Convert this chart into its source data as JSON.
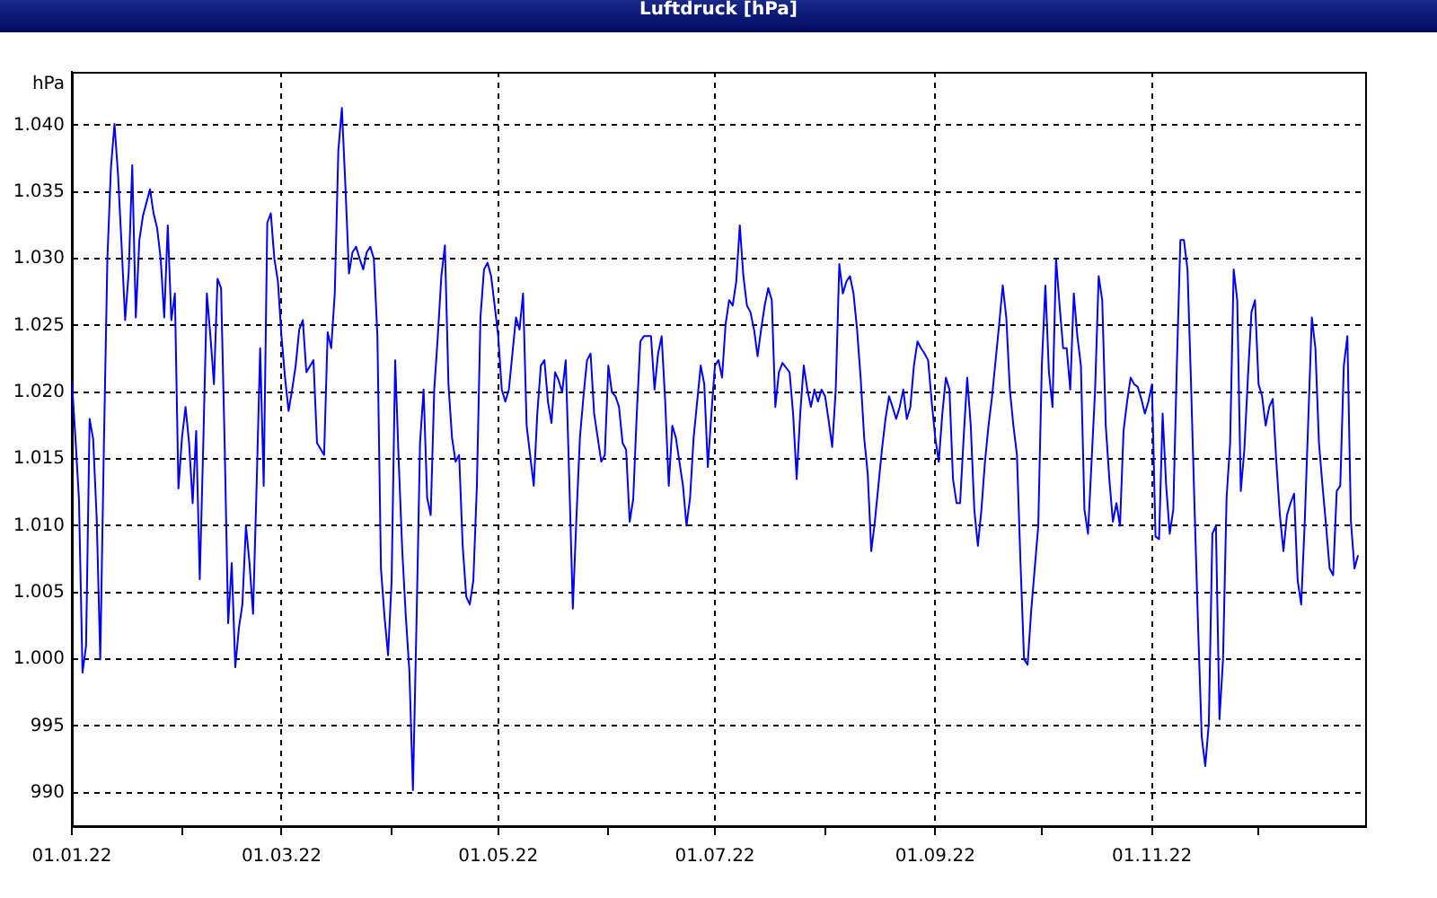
{
  "chart_data": {
    "type": "line",
    "title": "Luftdruck [hPa]",
    "ylabel": "hPa",
    "color": "#0000ff",
    "grid": true,
    "xlim": [
      "2022-01-01",
      "2022-12-31"
    ],
    "xticks": [
      {
        "value": "2022-01-01",
        "label": "01.01.22"
      },
      {
        "value": "2022-02-01",
        "label": null
      },
      {
        "value": "2022-03-01",
        "label": "01.03.22"
      },
      {
        "value": "2022-04-01",
        "label": null
      },
      {
        "value": "2022-05-01",
        "label": "01.05.22"
      },
      {
        "value": "2022-06-01",
        "label": null
      },
      {
        "value": "2022-07-01",
        "label": "01.07.22"
      },
      {
        "value": "2022-08-01",
        "label": null
      },
      {
        "value": "2022-09-01",
        "label": "01.09.22"
      },
      {
        "value": "2022-10-01",
        "label": null
      },
      {
        "value": "2022-11-01",
        "label": "01.11.22"
      },
      {
        "value": "2022-12-01",
        "label": null
      }
    ],
    "ylim": [
      987.5,
      1044
    ],
    "yticks": [
      990,
      995,
      {
        "value": 1000,
        "label": "1.000"
      },
      {
        "value": 1005,
        "label": "1.005"
      },
      {
        "value": 1010,
        "label": "1.010"
      },
      {
        "value": 1015,
        "label": "1.015"
      },
      {
        "value": 1020,
        "label": "1.020"
      },
      {
        "value": 1025,
        "label": "1.025"
      },
      {
        "value": 1030,
        "label": "1.030"
      },
      {
        "value": 1035,
        "label": "1.035"
      },
      {
        "value": 1040,
        "label": "1.040"
      }
    ],
    "x": [
      "2022-01-01",
      "2022-01-02",
      "2022-01-03",
      "2022-01-04",
      "2022-01-05",
      "2022-01-06",
      "2022-01-07",
      "2022-01-08",
      "2022-01-09",
      "2022-01-10",
      "2022-01-11",
      "2022-01-12",
      "2022-01-13",
      "2022-01-14",
      "2022-01-15",
      "2022-01-16",
      "2022-01-17",
      "2022-01-18",
      "2022-01-19",
      "2022-01-20",
      "2022-01-21",
      "2022-01-23",
      "2022-01-24",
      "2022-01-25",
      "2022-01-26",
      "2022-01-27",
      "2022-01-28",
      "2022-01-29",
      "2022-01-30",
      "2022-01-31",
      "2022-02-01",
      "2022-02-02",
      "2022-02-03",
      "2022-02-04",
      "2022-02-05",
      "2022-02-06",
      "2022-02-07",
      "2022-02-08",
      "2022-02-09",
      "2022-02-10",
      "2022-02-11",
      "2022-02-12",
      "2022-02-13",
      "2022-02-14",
      "2022-02-15",
      "2022-02-16",
      "2022-02-17",
      "2022-02-18",
      "2022-02-19",
      "2022-02-20",
      "2022-02-21",
      "2022-02-22",
      "2022-02-23",
      "2022-02-24",
      "2022-02-25",
      "2022-02-26",
      "2022-02-27",
      "2022-02-28",
      "2022-03-01",
      "2022-03-02",
      "2022-03-03",
      "2022-03-04",
      "2022-03-05",
      "2022-03-06",
      "2022-03-07",
      "2022-03-08",
      "2022-03-10",
      "2022-03-11",
      "2022-03-13",
      "2022-03-14",
      "2022-03-15",
      "2022-03-16",
      "2022-03-17",
      "2022-03-18",
      "2022-03-19",
      "2022-03-20",
      "2022-03-21",
      "2022-03-22",
      "2022-03-23",
      "2022-03-24",
      "2022-03-25",
      "2022-03-26",
      "2022-03-27",
      "2022-03-28",
      "2022-03-29",
      "2022-03-30",
      "2022-03-31",
      "2022-04-01",
      "2022-04-02",
      "2022-04-03",
      "2022-04-04",
      "2022-04-05",
      "2022-04-06",
      "2022-04-07",
      "2022-04-08",
      "2022-04-09",
      "2022-04-10",
      "2022-04-11",
      "2022-04-12",
      "2022-04-13",
      "2022-04-14",
      "2022-04-15",
      "2022-04-16",
      "2022-04-17",
      "2022-04-18",
      "2022-04-19",
      "2022-04-20",
      "2022-04-21",
      "2022-04-22",
      "2022-04-23",
      "2022-04-24",
      "2022-04-25",
      "2022-04-26",
      "2022-04-27",
      "2022-04-28",
      "2022-04-29",
      "2022-04-30",
      "2022-05-01",
      "2022-05-02",
      "2022-05-03",
      "2022-05-04",
      "2022-05-05",
      "2022-05-06",
      "2022-05-07",
      "2022-05-08",
      "2022-05-09",
      "2022-05-11",
      "2022-05-12",
      "2022-05-13",
      "2022-05-14",
      "2022-05-15",
      "2022-05-16",
      "2022-05-17",
      "2022-05-18",
      "2022-05-19",
      "2022-05-20",
      "2022-05-21",
      "2022-05-22",
      "2022-05-23",
      "2022-05-24",
      "2022-05-25",
      "2022-05-26",
      "2022-05-27",
      "2022-05-28",
      "2022-05-29",
      "2022-05-30",
      "2022-05-31",
      "2022-06-01",
      "2022-06-02",
      "2022-06-03",
      "2022-06-04",
      "2022-06-05",
      "2022-06-06",
      "2022-06-07",
      "2022-06-08",
      "2022-06-09",
      "2022-06-10",
      "2022-06-11",
      "2022-06-12",
      "2022-06-13",
      "2022-06-14",
      "2022-06-15",
      "2022-06-16",
      "2022-06-17",
      "2022-06-18",
      "2022-06-19",
      "2022-06-20",
      "2022-06-21",
      "2022-06-22",
      "2022-06-23",
      "2022-06-24",
      "2022-06-25",
      "2022-06-26",
      "2022-06-27",
      "2022-06-28",
      "2022-06-29",
      "2022-06-30",
      "2022-07-01",
      "2022-07-02",
      "2022-07-03",
      "2022-07-04",
      "2022-07-05",
      "2022-07-06",
      "2022-07-07",
      "2022-07-08",
      "2022-07-09",
      "2022-07-10",
      "2022-07-11",
      "2022-07-12",
      "2022-07-13",
      "2022-07-14",
      "2022-07-15",
      "2022-07-16",
      "2022-07-17",
      "2022-07-18",
      "2022-07-19",
      "2022-07-20",
      "2022-07-22",
      "2022-07-23",
      "2022-07-24",
      "2022-07-25",
      "2022-07-26",
      "2022-07-27",
      "2022-07-28",
      "2022-07-29",
      "2022-07-30",
      "2022-07-31",
      "2022-08-01",
      "2022-08-02",
      "2022-08-03",
      "2022-08-04",
      "2022-08-05",
      "2022-08-06",
      "2022-08-07",
      "2022-08-08",
      "2022-08-09",
      "2022-08-10",
      "2022-08-11",
      "2022-08-12",
      "2022-08-13",
      "2022-08-14",
      "2022-08-15",
      "2022-08-16",
      "2022-08-17",
      "2022-08-18",
      "2022-08-19",
      "2022-08-20",
      "2022-08-21",
      "2022-08-22",
      "2022-08-23",
      "2022-08-24",
      "2022-08-25",
      "2022-08-26",
      "2022-08-27",
      "2022-08-28",
      "2022-08-29",
      "2022-08-30",
      "2022-08-31",
      "2022-09-01",
      "2022-09-02",
      "2022-09-03",
      "2022-09-04",
      "2022-09-05",
      "2022-09-06",
      "2022-09-07",
      "2022-09-08",
      "2022-09-09",
      "2022-09-10",
      "2022-09-11",
      "2022-09-12",
      "2022-09-13",
      "2022-09-14",
      "2022-09-15",
      "2022-09-16",
      "2022-09-17",
      "2022-09-19",
      "2022-09-20",
      "2022-09-21",
      "2022-09-22",
      "2022-09-23",
      "2022-09-24",
      "2022-09-25",
      "2022-09-26",
      "2022-09-27",
      "2022-09-28",
      "2022-09-29",
      "2022-09-30",
      "2022-10-01",
      "2022-10-02",
      "2022-10-03",
      "2022-10-04",
      "2022-10-05",
      "2022-10-06",
      "2022-10-07",
      "2022-10-08",
      "2022-10-09",
      "2022-10-10",
      "2022-10-11",
      "2022-10-12",
      "2022-10-13",
      "2022-10-14",
      "2022-10-15",
      "2022-10-16",
      "2022-10-17",
      "2022-10-18",
      "2022-10-19",
      "2022-10-20",
      "2022-10-21",
      "2022-10-22",
      "2022-10-23",
      "2022-10-24",
      "2022-10-25",
      "2022-10-26",
      "2022-10-27",
      "2022-10-28",
      "2022-10-29",
      "2022-10-30",
      "2022-10-31",
      "2022-11-01",
      "2022-11-02",
      "2022-11-03",
      "2022-11-04",
      "2022-11-05",
      "2022-11-06",
      "2022-11-07",
      "2022-11-08",
      "2022-11-09",
      "2022-11-10",
      "2022-11-11",
      "2022-11-12",
      "2022-11-13",
      "2022-11-14",
      "2022-11-15",
      "2022-11-16",
      "2022-11-17",
      "2022-11-18",
      "2022-11-19",
      "2022-11-20",
      "2022-11-21",
      "2022-11-22",
      "2022-11-23",
      "2022-11-24",
      "2022-11-25",
      "2022-11-26",
      "2022-11-27",
      "2022-11-28",
      "2022-11-29",
      "2022-11-30",
      "2022-12-01",
      "2022-12-02",
      "2022-12-03",
      "2022-12-04",
      "2022-12-05",
      "2022-12-06",
      "2022-12-07",
      "2022-12-08",
      "2022-12-09",
      "2022-12-10",
      "2022-12-11",
      "2022-12-12",
      "2022-12-13",
      "2022-12-14",
      "2022-12-15",
      "2022-12-16",
      "2022-12-17",
      "2022-12-18",
      "2022-12-19",
      "2022-12-20",
      "2022-12-21",
      "2022-12-22",
      "2022-12-23",
      "2022-12-24",
      "2022-12-25",
      "2022-12-26",
      "2022-12-27",
      "2022-12-28",
      "2022-12-29"
    ],
    "values": [
      1020.9,
      1016.6,
      1012,
      999,
      1001,
      1018,
      1016.5,
      1010.5,
      1000,
      1015.7,
      1030,
      1036.8,
      1040.1,
      1036.3,
      1031,
      1025.4,
      1029,
      1037,
      1025.6,
      1031.4,
      1033.2,
      1035.2,
      1033.4,
      1032.3,
      1030,
      1025.6,
      1032.5,
      1025.4,
      1027.4,
      1012.8,
      1016.6,
      1018.9,
      1016.2,
      1011.7,
      1017.1,
      1006,
      1016.2,
      1027.4,
      1024.2,
      1020.6,
      1028.5,
      1027.8,
      1016.2,
      1002.7,
      1007.2,
      999.4,
      1002.3,
      1004.1,
      1010,
      1007.2,
      1003.4,
      1013,
      1023.3,
      1013,
      1032.7,
      1033.4,
      1030,
      1028.3,
      1024.2,
      1021.1,
      1018.6,
      1020.2,
      1022,
      1024.7,
      1025.4,
      1021.5,
      1022.4,
      1016.2,
      1015.3,
      1024.5,
      1023.3,
      1027.4,
      1038.1,
      1041.3,
      1035.4,
      1028.9,
      1030.5,
      1030.9,
      1030,
      1029.2,
      1030.5,
      1030.9,
      1030,
      1024.2,
      1006.8,
      1003.2,
      1000.3,
      1005.9,
      1022.4,
      1014.8,
      1008.1,
      1003.2,
      999.1,
      990.2,
      1002.7,
      1016.2,
      1020.2,
      1012.1,
      1010.8,
      1020.2,
      1024.2,
      1028.7,
      1031,
      1020.6,
      1016.6,
      1014.8,
      1015.3,
      1008.5,
      1004.7,
      1004.1,
      1005.9,
      1013,
      1025.6,
      1029.2,
      1029.7,
      1028.7,
      1026.5,
      1024.2,
      1020.2,
      1019.3,
      1020.2,
      1022.9,
      1025.6,
      1024.7,
      1027.4,
      1017.5,
      1013,
      1018.4,
      1022,
      1022.4,
      1019.3,
      1017.7,
      1021.5,
      1020.9,
      1020,
      1022.4,
      1013.5,
      1003.8,
      1010.5,
      1016.6,
      1019.7,
      1022.4,
      1022.9,
      1018.4,
      1016.6,
      1014.8,
      1015.3,
      1022,
      1020,
      1019.7,
      1018.9,
      1016.2,
      1015.7,
      1010.3,
      1012,
      1018.4,
      1023.8,
      1024.2,
      1024.2,
      1024.2,
      1020.2,
      1022.9,
      1024.2,
      1019.3,
      1013,
      1017.5,
      1016.6,
      1014.8,
      1013,
      1010,
      1012.1,
      1016.6,
      1019.3,
      1022,
      1020.6,
      1014.4,
      1018.4,
      1022,
      1022.4,
      1021.1,
      1025.1,
      1026.9,
      1026.5,
      1028.3,
      1032.5,
      1028.7,
      1026.5,
      1026,
      1024.7,
      1022.7,
      1024.7,
      1026.5,
      1027.8,
      1026.9,
      1018.9,
      1021.5,
      1022.2,
      1021.5,
      1018.4,
      1013.5,
      1018.4,
      1022,
      1020.2,
      1018.9,
      1020.2,
      1019.3,
      1020.2,
      1019.7,
      1017.9,
      1015.9,
      1020.2,
      1029.6,
      1027.4,
      1028.3,
      1028.7,
      1027.4,
      1024.7,
      1021.1,
      1016.6,
      1013.9,
      1008.1,
      1010.3,
      1013,
      1015.7,
      1018,
      1019.7,
      1018.9,
      1018,
      1018.9,
      1020.2,
      1018,
      1018.9,
      1022,
      1023.8,
      1023.3,
      1022.9,
      1022.4,
      1019.3,
      1016.6,
      1014.8,
      1018.4,
      1021.1,
      1020.2,
      1013.5,
      1011.7,
      1011.7,
      1016.6,
      1021.1,
      1017.5,
      1011.2,
      1008.5,
      1011.2,
      1014.8,
      1017.5,
      1019.7,
      1025.1,
      1028,
      1025.6,
      1020.2,
      1017.5,
      1015.3,
      1007.2,
      1000,
      999.6,
      1003.6,
      1006.8,
      1010,
      1022,
      1028,
      1021.5,
      1018.9,
      1030,
      1026.5,
      1023.3,
      1023.3,
      1020.2,
      1027.4,
      1024.2,
      1022,
      1011.2,
      1009.4,
      1014.8,
      1020.2,
      1028.7,
      1026.9,
      1017.5,
      1013.5,
      1010.3,
      1011.7,
      1010,
      1017.1,
      1019.3,
      1021.1,
      1020.6,
      1020.4,
      1019.5,
      1018.4,
      1019.3,
      1020.6,
      1009.2,
      1009,
      1018.4,
      1013,
      1009.4,
      1011.2,
      1022,
      1031.4,
      1031.4,
      1029.2,
      1020.6,
      1011.2,
      1002.3,
      994.2,
      992,
      995.2,
      1009.4,
      1010,
      995.5,
      1000,
      1012.1,
      1016.2,
      1029.2,
      1026.9,
      1012.6,
      1015.7,
      1021.1,
      1026,
      1026.9,
      1020.6,
      1019.7,
      1017.5,
      1018.9,
      1019.5,
      1014.8,
      1010.8,
      1008.1,
      1010.8,
      1011.7,
      1012.4,
      1005.9,
      1004.1,
      1010.3,
      1018,
      1025.6,
      1023.3,
      1016.2,
      1013,
      1010,
      1006.8,
      1006.3,
      1012.6,
      1013,
      1022,
      1024.2,
      1010.3,
      1006.8,
      1007.8
    ]
  }
}
